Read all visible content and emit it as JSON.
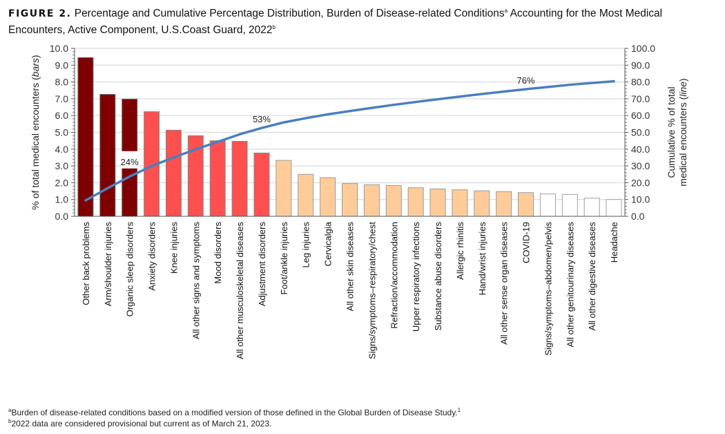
{
  "title": {
    "figure_label": "FIGURE 2.",
    "text_1": " Percentage and Cumulative Percentage Distribution, Burden of Disease-related Conditions",
    "sup_a": "a",
    "text_2": " Accounting for the Most Medical Encounters, Active Component, U.S.Coast Guard, 2022",
    "sup_b": "b"
  },
  "footnotes": {
    "a_mark": "a",
    "a_text": "Burden of disease-related conditions based on a modified version of those defined in the Global Burden of Disease Study.",
    "a_sup": "1",
    "b_mark": "b",
    "b_text": "2022 data are considered provisional but current as of March 21, 2023."
  },
  "chart_data": {
    "type": "bar+line",
    "ylabel_left": "% of total medical encounters (",
    "ylabel_left_italic": "bars",
    "ylabel_left_end": ")",
    "ylabel_right_1": "Cumulative % of total",
    "ylabel_right_2": "medical encounters (",
    "ylabel_right_italic": "line",
    "ylabel_right_end": ")",
    "ylim_left": [
      0,
      10
    ],
    "ylim_right": [
      0,
      100
    ],
    "yticks_left": [
      "0.0",
      "1.0",
      "2.0",
      "3.0",
      "4.0",
      "5.0",
      "6.0",
      "7.0",
      "8.0",
      "9.0",
      "10.0"
    ],
    "yticks_right": [
      "0.0",
      "10.0",
      "20.0",
      "30.0",
      "40.0",
      "50.0",
      "60.0",
      "70.0",
      "80.0",
      "90.0",
      "100.0"
    ],
    "grid": true,
    "categories": [
      "Other back problems",
      "Arm/shoulder injuries",
      "Organic sleep disorders",
      "Anxiety disorders",
      "Knee injuries",
      "All other signs and symptoms",
      "Mood disorders",
      "All other musculoskeletal diseases",
      "Adjustment disorders",
      "Foot/ankle injuries",
      "Leg injuries",
      "Cervicalgia",
      "All other skin diseases",
      "Signs/symptoms–respiratory/chest",
      "Refraction/accommodation",
      "Upper respiratory infections",
      "Substance abuse disorders",
      "Allergic rhinitis",
      "Hand/wrist injuries",
      "All other sense organ diseases",
      "COVID-19",
      "Signs/symptoms–abdomen/pelvis",
      "All other genitourinary diseases",
      "All other digestive diseases",
      "Headache"
    ],
    "bar_values": [
      9.45,
      7.26,
      6.98,
      6.23,
      5.13,
      4.8,
      4.5,
      4.47,
      3.77,
      3.33,
      2.5,
      2.3,
      1.95,
      1.88,
      1.83,
      1.7,
      1.63,
      1.58,
      1.52,
      1.47,
      1.41,
      1.33,
      1.3,
      1.08,
      1.0
    ],
    "bar_groups": [
      0,
      0,
      0,
      1,
      1,
      1,
      1,
      1,
      1,
      2,
      2,
      2,
      2,
      2,
      2,
      2,
      2,
      2,
      2,
      2,
      2,
      3,
      3,
      3,
      3
    ],
    "group_colors": {
      "fill": [
        "#7f0000",
        "#ff5050",
        "#ffcc99",
        "#ffffff"
      ],
      "stroke": [
        "#6a6a6a",
        "#8a8a8a",
        "#9a9a9a",
        "#a0a0a0"
      ]
    },
    "line_values": [
      9.45,
      16.71,
      23.69,
      29.92,
      35.05,
      39.85,
      44.35,
      48.82,
      52.59,
      55.92,
      58.42,
      60.72,
      62.67,
      64.55,
      66.38,
      68.08,
      69.71,
      71.29,
      72.81,
      74.28,
      75.69,
      77.02,
      78.32,
      79.4,
      80.4
    ],
    "line_color": "#4a7ebf",
    "annotations": [
      {
        "index": 2,
        "text": "24%"
      },
      {
        "index": 8,
        "text": "53%"
      },
      {
        "index": 20,
        "text": "76%"
      }
    ]
  }
}
